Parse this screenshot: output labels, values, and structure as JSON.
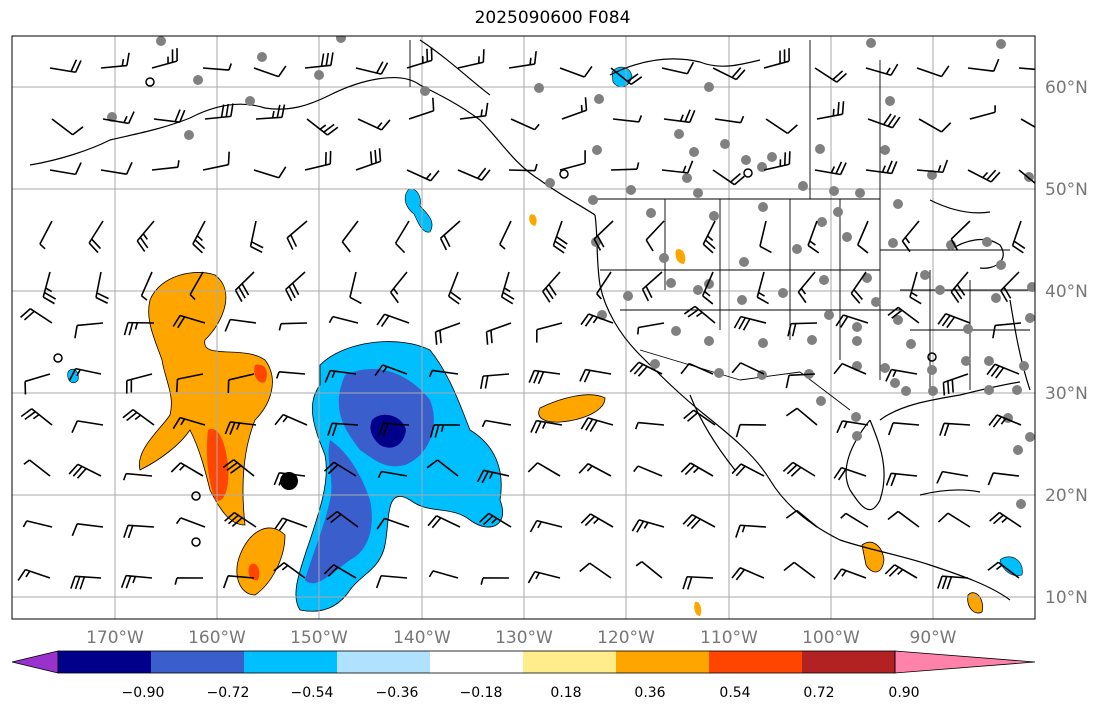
{
  "title": "2025090600 F084",
  "map": {
    "lat_labels": [
      "60°N",
      "50°N",
      "40°N",
      "30°N",
      "20°N",
      "10°N"
    ],
    "lon_labels": [
      "170°W",
      "160°W",
      "150°W",
      "140°W",
      "130°W",
      "120°W",
      "110°W",
      "100°W",
      "90°W"
    ]
  },
  "colorbar": {
    "tick_labels": [
      "−0.90",
      "−0.72",
      "−0.54",
      "−0.36",
      "−0.18",
      "0.18",
      "0.36",
      "0.54",
      "0.72",
      "0.90"
    ],
    "colors": [
      "#9932cc",
      "#00008b",
      "#3a5fcd",
      "#00bfff",
      "#b0e2ff",
      "#ffffff",
      "#ffec8b",
      "#ffa500",
      "#ff4500",
      "#b22222",
      "#ff82ab"
    ]
  }
}
